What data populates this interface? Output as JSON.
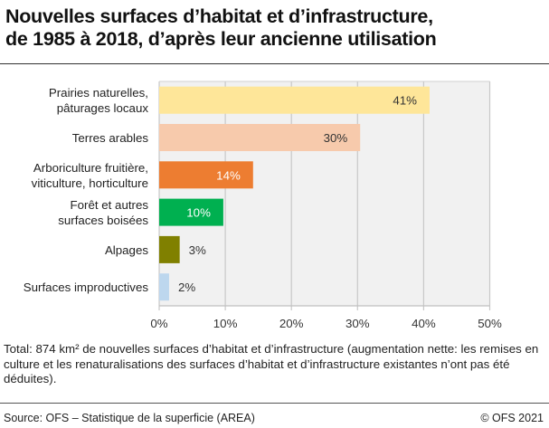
{
  "title_line1": "Nouvelles surfaces d’habitat et d’infrastructure,",
  "title_line2": "de 1985 à 2018, d’après leur ancienne utilisation",
  "chart_data": {
    "type": "bar",
    "orientation": "horizontal",
    "categories": [
      [
        "Prairies naturelles,",
        "pâturages locaux"
      ],
      [
        "Terres arables"
      ],
      [
        "Arboriculture fruitière,",
        "viticulture, horticulture"
      ],
      [
        "Forêt et autres",
        "surfaces boisées"
      ],
      [
        "Alpages"
      ],
      [
        "Surfaces improductives"
      ]
    ],
    "values": [
      40.9,
      30.4,
      14.2,
      9.7,
      3.1,
      1.5
    ],
    "data_labels": [
      "41%",
      "30%",
      "14%",
      "10%",
      "3%",
      "2%"
    ],
    "colors": [
      "#fee699",
      "#f7caac",
      "#ed7d31",
      "#00b050",
      "#808000",
      "#bdd7ee"
    ],
    "label_colors": [
      "#333333",
      "#333333",
      "#ffffff",
      "#ffffff",
      "#333333",
      "#333333"
    ],
    "xlim": [
      0,
      50
    ],
    "xticks": [
      "0%",
      "10%",
      "20%",
      "30%",
      "40%",
      "50%"
    ],
    "grid": true,
    "plot_background": "#f1f1f1"
  },
  "note": "Total: 874 km² de nouvelles surfaces d’habitat et d’infrastructure (augmentation nette: les remises en culture et les renaturalisations des surfaces d’habitat et d’infrastructure existantes n’ont pas été déduites).",
  "source": "Source: OFS – Statistique de la superficie (AREA)",
  "copyright": "© OFS 2021"
}
